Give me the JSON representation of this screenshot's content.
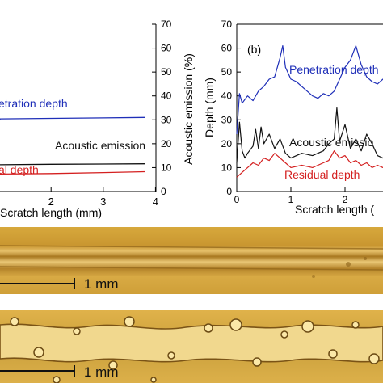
{
  "colors": {
    "penetration": "#1f2fb8",
    "acoustic": "#111111",
    "residual": "#d42020",
    "micrograph_base": "#d9a93a",
    "micrograph_groove": "#a8761c",
    "debris": "#6b4a14"
  },
  "chart_data": [
    {
      "type": "line",
      "title": "",
      "xlabel": "Scratch length (mm)",
      "ylabel_right": "Acoustic emission (%)",
      "xlim": [
        0,
        4
      ],
      "ylim_right": [
        0,
        70
      ],
      "x_ticks": [
        "2",
        "3",
        "4"
      ],
      "y_ticks_right": [
        "0",
        "10",
        "20",
        "30",
        "40",
        "50",
        "60",
        "70"
      ],
      "series": [
        {
          "name": "Penetration depth",
          "label": "etration depth",
          "x": [
            0,
            1,
            2,
            3,
            3.8
          ],
          "values": [
            30,
            30.4,
            30.6,
            30.8,
            31
          ]
        },
        {
          "name": "Acoustic emission",
          "label": "Acoustic emission",
          "x": [
            0,
            1,
            2,
            3,
            3.8
          ],
          "values": [
            11,
            11.2,
            11.4,
            11.5,
            11.6
          ]
        },
        {
          "name": "Residual depth",
          "label": "al depth",
          "x": [
            0,
            1,
            2,
            3,
            3.8
          ],
          "values": [
            7,
            7.3,
            7.5,
            7.9,
            8.3
          ]
        }
      ]
    },
    {
      "type": "line",
      "title": "",
      "panel_label": "(b)",
      "xlabel": "Scratch length (",
      "ylabel": "Depth (mm)",
      "xlim": [
        0,
        2.8
      ],
      "ylim": [
        0,
        70
      ],
      "x_ticks": [
        "0",
        "1",
        "2"
      ],
      "y_ticks": [
        "0",
        "10",
        "20",
        "30",
        "40",
        "50",
        "60",
        "70"
      ],
      "series": [
        {
          "name": "Penetration depth",
          "label": "Penetration depth",
          "x": [
            0,
            0.05,
            0.1,
            0.2,
            0.3,
            0.4,
            0.5,
            0.6,
            0.7,
            0.8,
            0.85,
            0.9,
            1.0,
            1.1,
            1.2,
            1.3,
            1.4,
            1.5,
            1.6,
            1.7,
            1.8,
            1.9,
            2.0,
            2.1,
            2.2,
            2.3,
            2.4,
            2.5,
            2.6,
            2.7,
            2.8
          ],
          "values": [
            24,
            41,
            37,
            40,
            38,
            42,
            44,
            47,
            48,
            56,
            61,
            52,
            47,
            46,
            44,
            42,
            40,
            39,
            41,
            40,
            42,
            47,
            52,
            55,
            61,
            53,
            48,
            46,
            45,
            47,
            46
          ]
        },
        {
          "name": "Acoustic emission",
          "label": "Acoustic emissio",
          "x": [
            0,
            0.05,
            0.1,
            0.15,
            0.2,
            0.3,
            0.35,
            0.4,
            0.45,
            0.5,
            0.6,
            0.7,
            0.8,
            0.9,
            1.0,
            1.2,
            1.4,
            1.6,
            1.7,
            1.8,
            1.85,
            1.9,
            2.0,
            2.1,
            2.2,
            2.3,
            2.4,
            2.5,
            2.6,
            2.7,
            2.8
          ],
          "values": [
            12,
            29,
            17,
            14,
            16,
            19,
            26,
            18,
            27,
            20,
            24,
            18,
            22,
            16,
            14,
            16,
            15,
            17,
            20,
            22,
            35,
            21,
            28,
            18,
            22,
            17,
            24,
            20,
            15,
            14,
            15
          ]
        },
        {
          "name": "Residual depth",
          "label": "Residual depth",
          "x": [
            0,
            0.1,
            0.2,
            0.3,
            0.4,
            0.5,
            0.6,
            0.7,
            0.8,
            0.9,
            1.0,
            1.2,
            1.4,
            1.6,
            1.7,
            1.8,
            1.9,
            2.0,
            2.1,
            2.2,
            2.3,
            2.4,
            2.5,
            2.6,
            2.7,
            2.8
          ],
          "values": [
            6,
            8,
            10,
            12,
            11,
            14,
            13,
            16,
            14,
            12,
            10,
            11,
            10,
            12,
            13,
            17,
            14,
            15,
            12,
            13,
            11,
            12,
            10,
            11,
            10,
            11
          ]
        }
      ]
    }
  ],
  "micrographs": [
    {
      "scale_label": "1 mm"
    },
    {
      "scale_label": "1 mm"
    }
  ]
}
